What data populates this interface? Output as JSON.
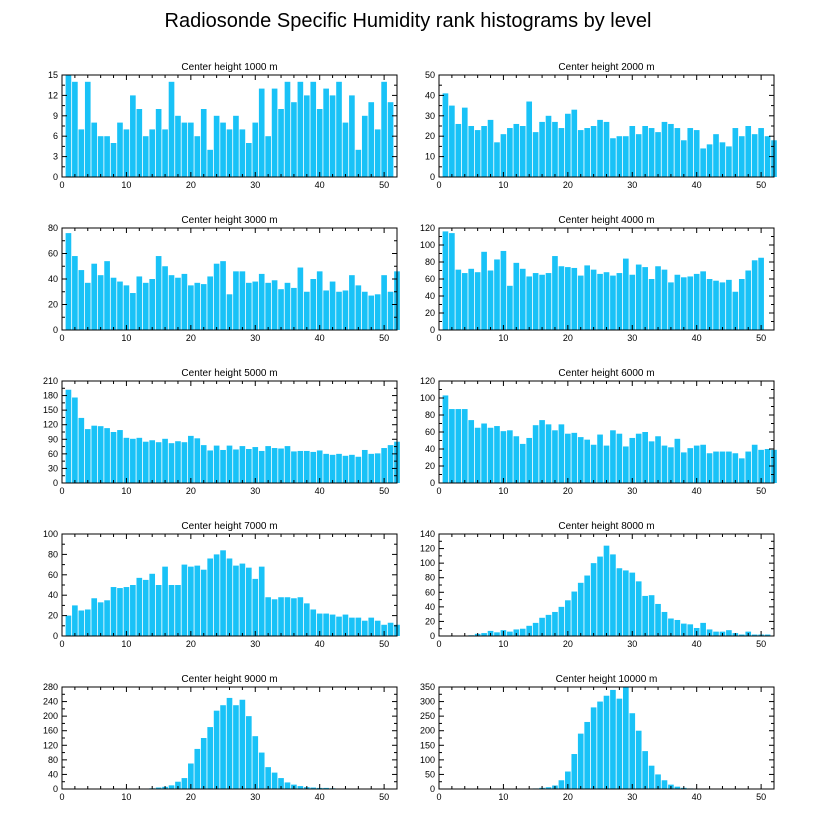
{
  "title": "Radiosonde Specific Humidity rank histograms by level",
  "colors": {
    "bar": "#19c2f7",
    "axis": "#000000",
    "background": "#ffffff"
  },
  "chart_data": [
    {
      "type": "bar",
      "title": "Center height 1000 m",
      "xlim": [
        0,
        52
      ],
      "ylim": [
        0,
        15
      ],
      "xticks": [
        0,
        10,
        20,
        30,
        40,
        50
      ],
      "yticks": [
        0,
        3,
        6,
        9,
        12,
        15
      ],
      "values": [
        15,
        14,
        7,
        14,
        8,
        6,
        6,
        5,
        8,
        7,
        12,
        10,
        6,
        7,
        10,
        7,
        14,
        9,
        8,
        8,
        6,
        10,
        4,
        9,
        8,
        7,
        9,
        7,
        5,
        8,
        13,
        6,
        13,
        10,
        14,
        11,
        14,
        12,
        14,
        10,
        13,
        12,
        14,
        8,
        12,
        4,
        9,
        11,
        7,
        14,
        11
      ]
    },
    {
      "type": "bar",
      "title": "Center height 2000 m",
      "xlim": [
        0,
        52
      ],
      "ylim": [
        0,
        50
      ],
      "xticks": [
        0,
        10,
        20,
        30,
        40,
        50
      ],
      "yticks": [
        0,
        10,
        20,
        30,
        40,
        50
      ],
      "values": [
        41,
        35,
        26,
        34,
        25,
        23,
        25,
        28,
        17,
        21,
        24,
        26,
        25,
        37,
        22,
        27,
        30,
        27,
        24,
        31,
        33,
        23,
        24,
        25,
        28,
        27,
        19,
        20,
        20,
        25,
        21,
        25,
        24,
        22,
        27,
        26,
        24,
        18,
        24,
        23,
        14,
        16,
        21,
        17,
        15,
        24,
        20,
        25,
        21,
        24,
        20,
        18
      ]
    },
    {
      "type": "bar",
      "title": "Center height 3000 m",
      "xlim": [
        0,
        52
      ],
      "ylim": [
        0,
        80
      ],
      "xticks": [
        0,
        10,
        20,
        30,
        40,
        50
      ],
      "yticks": [
        0,
        20,
        40,
        60,
        80
      ],
      "values": [
        76,
        58,
        47,
        37,
        52,
        43,
        54,
        41,
        38,
        35,
        29,
        42,
        37,
        40,
        58,
        50,
        43,
        41,
        44,
        35,
        37,
        36,
        42,
        52,
        54,
        28,
        46,
        46,
        37,
        38,
        44,
        37,
        39,
        32,
        37,
        33,
        49,
        30,
        40,
        46,
        31,
        38,
        30,
        31,
        43,
        35,
        30,
        27,
        28,
        43,
        30,
        46
      ]
    },
    {
      "type": "bar",
      "title": "Center height 4000 m",
      "xlim": [
        0,
        52
      ],
      "ylim": [
        0,
        120
      ],
      "xticks": [
        0,
        10,
        20,
        30,
        40,
        50
      ],
      "yticks": [
        0,
        20,
        40,
        60,
        80,
        100,
        120
      ],
      "values": [
        116,
        114,
        71,
        67,
        72,
        68,
        92,
        70,
        83,
        93,
        52,
        79,
        72,
        63,
        67,
        65,
        67,
        87,
        75,
        74,
        73,
        64,
        76,
        71,
        66,
        68,
        64,
        67,
        84,
        65,
        77,
        74,
        60,
        75,
        71,
        56,
        65,
        62,
        63,
        66,
        69,
        60,
        58,
        56,
        59,
        45,
        60,
        70,
        82,
        85
      ]
    },
    {
      "type": "bar",
      "title": "Center height 5000 m",
      "xlim": [
        0,
        52
      ],
      "ylim": [
        0,
        210
      ],
      "xticks": [
        0,
        10,
        20,
        30,
        40,
        50
      ],
      "yticks": [
        0,
        30,
        60,
        90,
        120,
        150,
        180,
        210
      ],
      "values": [
        192,
        176,
        134,
        111,
        118,
        117,
        113,
        105,
        109,
        93,
        91,
        93,
        85,
        88,
        84,
        91,
        82,
        86,
        84,
        97,
        92,
        78,
        67,
        77,
        68,
        77,
        69,
        76,
        70,
        74,
        66,
        76,
        72,
        71,
        76,
        65,
        66,
        66,
        64,
        67,
        60,
        58,
        60,
        56,
        58,
        54,
        68,
        60,
        61,
        72,
        78,
        85
      ]
    },
    {
      "type": "bar",
      "title": "Center height 6000 m",
      "xlim": [
        0,
        52
      ],
      "ylim": [
        0,
        120
      ],
      "xticks": [
        0,
        10,
        20,
        30,
        40,
        50
      ],
      "yticks": [
        0,
        20,
        40,
        60,
        80,
        100,
        120
      ],
      "values": [
        103,
        87,
        87,
        87,
        74,
        65,
        70,
        65,
        67,
        61,
        62,
        55,
        46,
        53,
        68,
        74,
        69,
        62,
        69,
        58,
        59,
        54,
        51,
        45,
        57,
        44,
        62,
        58,
        43,
        53,
        58,
        60,
        49,
        55,
        44,
        42,
        52,
        36,
        41,
        44,
        45,
        35,
        37,
        37,
        37,
        35,
        29,
        37,
        45,
        39,
        40,
        39
      ]
    },
    {
      "type": "bar",
      "title": "Center height 7000 m",
      "xlim": [
        0,
        52
      ],
      "ylim": [
        0,
        100
      ],
      "xticks": [
        0,
        10,
        20,
        30,
        40,
        50
      ],
      "yticks": [
        0,
        20,
        40,
        60,
        80,
        100
      ],
      "values": [
        20,
        30,
        25,
        26,
        37,
        33,
        35,
        48,
        47,
        48,
        50,
        57,
        55,
        61,
        50,
        68,
        50,
        50,
        70,
        68,
        69,
        65,
        76,
        80,
        84,
        76,
        69,
        71,
        67,
        56,
        68,
        38,
        36,
        38,
        38,
        37,
        38,
        32,
        26,
        22,
        22,
        21,
        19,
        21,
        18,
        18,
        15,
        18,
        15,
        11,
        13,
        11
      ]
    },
    {
      "type": "bar",
      "title": "Center height 8000 m",
      "xlim": [
        0,
        52
      ],
      "ylim": [
        0,
        140
      ],
      "xticks": [
        0,
        10,
        20,
        30,
        40,
        50
      ],
      "yticks": [
        0,
        20,
        40,
        60,
        80,
        100,
        120,
        140
      ],
      "values": [
        0,
        0,
        0,
        0,
        1,
        3,
        4,
        7,
        5,
        8,
        6,
        9,
        10,
        14,
        18,
        25,
        29,
        33,
        40,
        49,
        61,
        73,
        83,
        100,
        109,
        124,
        112,
        93,
        90,
        87,
        75,
        55,
        56,
        44,
        33,
        24,
        22,
        17,
        16,
        11,
        18,
        9,
        6,
        6,
        8,
        4,
        2,
        6,
        2,
        2,
        2
      ]
    },
    {
      "type": "bar",
      "title": "Center height 9000 m",
      "xlim": [
        0,
        52
      ],
      "ylim": [
        0,
        280
      ],
      "xticks": [
        0,
        10,
        20,
        30,
        40,
        50
      ],
      "yticks": [
        0,
        40,
        80,
        120,
        160,
        200,
        240,
        280
      ],
      "values": [
        0,
        0,
        0,
        0,
        0,
        0,
        0,
        0,
        0,
        0,
        0,
        0,
        1,
        2,
        4,
        6,
        10,
        20,
        30,
        70,
        110,
        140,
        170,
        215,
        230,
        250,
        230,
        245,
        200,
        145,
        100,
        60,
        45,
        30,
        18,
        12,
        8,
        5,
        4,
        3,
        3,
        2,
        1,
        1,
        1,
        0,
        0,
        0,
        1,
        0,
        0,
        0
      ]
    },
    {
      "type": "bar",
      "title": "Center height 10000 m",
      "xlim": [
        0,
        52
      ],
      "ylim": [
        0,
        350
      ],
      "xticks": [
        0,
        10,
        20,
        30,
        40,
        50
      ],
      "yticks": [
        0,
        50,
        100,
        150,
        200,
        250,
        300,
        350
      ],
      "values": [
        0,
        0,
        0,
        0,
        0,
        0,
        0,
        0,
        0,
        0,
        0,
        0,
        0,
        1,
        2,
        4,
        6,
        12,
        30,
        60,
        120,
        190,
        230,
        280,
        300,
        320,
        340,
        310,
        350,
        260,
        200,
        130,
        80,
        50,
        30,
        15,
        8,
        4,
        2,
        1,
        1,
        0,
        0,
        0,
        0,
        0,
        0,
        0,
        0,
        0,
        0,
        0
      ]
    }
  ]
}
